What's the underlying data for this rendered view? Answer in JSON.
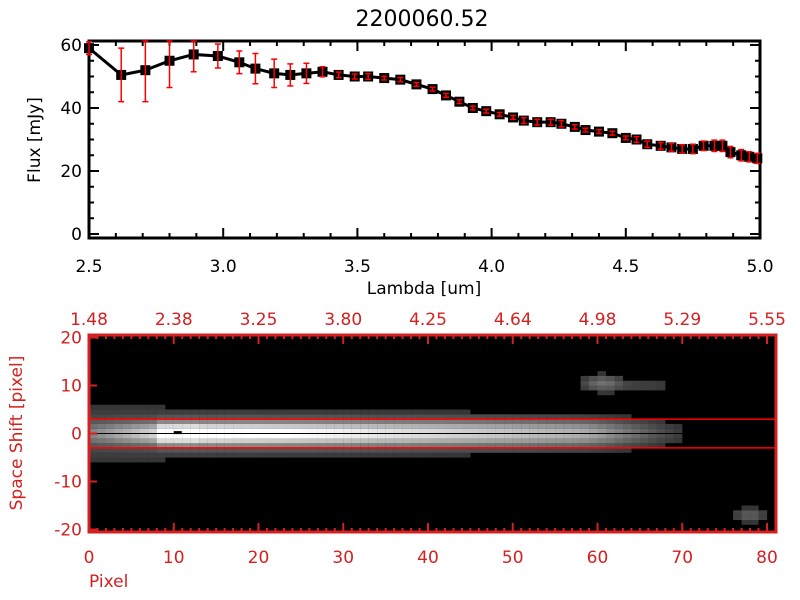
{
  "colors": {
    "axis_top": "#000000",
    "error_bars": "#ff0000",
    "axis_bottom": "#d42020",
    "aperture_lines": "#ff0000"
  },
  "chart_data": [
    {
      "type": "line",
      "title": "2200060.52",
      "xlabel": "Lambda [um]",
      "ylabel": "Flux [mJy]",
      "xlim": [
        2.5,
        5.0
      ],
      "ylim": [
        -2,
        62
      ],
      "xticks": [
        "2.5",
        "3.0",
        "3.5",
        "4.0",
        "4.5",
        "5.0"
      ],
      "yticks": [
        "0",
        "20",
        "40",
        "60"
      ],
      "grid": false,
      "marker": "square",
      "x": [
        2.5,
        2.62,
        2.71,
        2.8,
        2.89,
        2.98,
        3.06,
        3.12,
        3.19,
        3.25,
        3.31,
        3.37,
        3.43,
        3.49,
        3.54,
        3.6,
        3.66,
        3.72,
        3.78,
        3.83,
        3.88,
        3.93,
        3.98,
        4.03,
        4.08,
        4.12,
        4.17,
        4.22,
        4.26,
        4.31,
        4.35,
        4.4,
        4.45,
        4.5,
        4.54,
        4.58,
        4.63,
        4.67,
        4.71,
        4.75,
        4.79,
        4.83,
        4.86,
        4.89,
        4.93,
        4.96,
        4.99
      ],
      "y": [
        59,
        50.5,
        52,
        55,
        57,
        56.5,
        54.5,
        52.5,
        51,
        50.5,
        51,
        51.5,
        50.5,
        50,
        50,
        49.5,
        49,
        47.5,
        46,
        44,
        42,
        40,
        39,
        38,
        37,
        36,
        35.5,
        35.5,
        35,
        34,
        33,
        32.5,
        32,
        30.5,
        30,
        28.5,
        28,
        27.5,
        27,
        27,
        28,
        28,
        28,
        26,
        25,
        24.5,
        24
      ],
      "yerr": [
        2,
        8.5,
        10,
        8.5,
        5.5,
        3.8,
        3.6,
        4.8,
        4.5,
        3.5,
        3.2,
        1.6,
        0.9,
        0.8,
        0.9,
        0.6,
        0.7,
        0.6,
        0.6,
        0.6,
        0.6,
        0.6,
        0.6,
        0.6,
        0.6,
        0.9,
        0.9,
        0.9,
        1.0,
        0.7,
        0.6,
        0.6,
        0.6,
        0.6,
        0.9,
        1.0,
        1.1,
        1.2,
        1.3,
        1.5,
        1.5,
        1.8,
        1.8,
        1.8,
        1.8,
        1.6,
        1.6
      ]
    },
    {
      "type": "heatmap",
      "xlabel": "Pixel",
      "ylabel": "Space Shift [pixel]",
      "xlim": [
        0,
        81
      ],
      "ylim": [
        -21,
        21
      ],
      "xticks": [
        "0",
        "10",
        "20",
        "30",
        "40",
        "50",
        "60",
        "70",
        "80"
      ],
      "yticks": [
        "20",
        "10",
        "0",
        "-10",
        "-20"
      ],
      "top_xticks": [
        "1.48",
        "2.38",
        "3.25",
        "3.80",
        "4.25",
        "4.64",
        "4.98",
        "5.29",
        "5.55"
      ],
      "colormap": "grayscale",
      "aperture_lines": [
        3,
        -3
      ],
      "center_line": 0
    }
  ]
}
